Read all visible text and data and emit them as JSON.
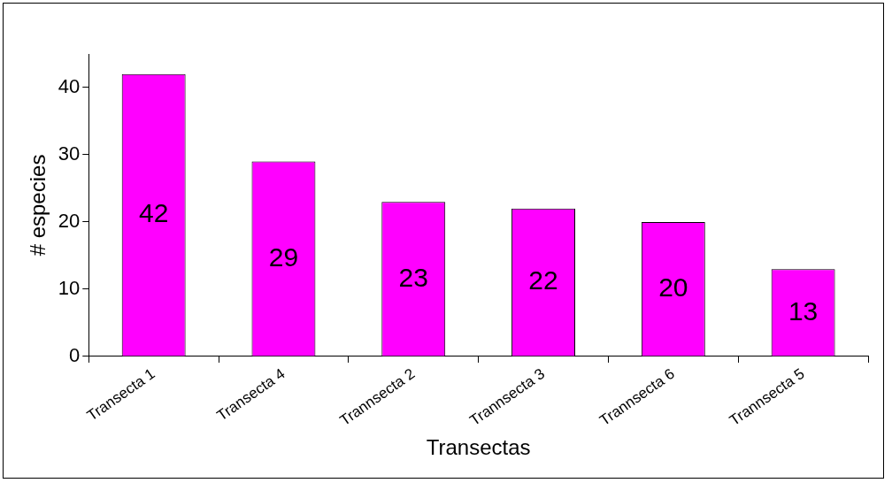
{
  "chart_data": {
    "type": "bar",
    "xlabel": "Transectas",
    "ylabel": "# especies",
    "categories": [
      "Transecta 1",
      "Transecta 4",
      "Trannsecta 2",
      "Trannsecta 3",
      "Trannsecta 6",
      "Trannsecta 5"
    ],
    "values": [
      42,
      29,
      23,
      22,
      20,
      13
    ],
    "color": "#ff00ff",
    "ylim": [
      0,
      45
    ],
    "yticks": [
      0,
      10,
      20,
      30,
      40
    ],
    "grid": false,
    "legend": false,
    "data_labels": true
  }
}
